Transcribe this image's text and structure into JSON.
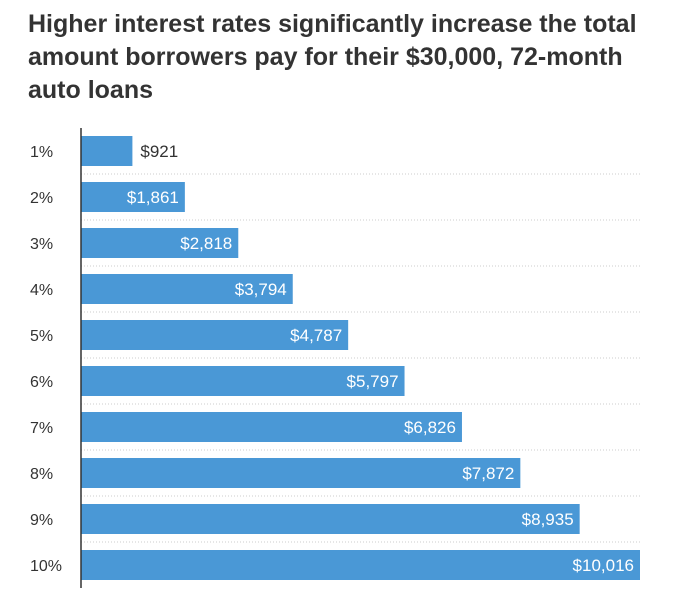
{
  "chart_data": {
    "type": "bar",
    "orientation": "horizontal",
    "title": "Higher interest rates significantly increase the total amount borrowers pay for their $30,000, 72-month auto loans",
    "categories": [
      "1%",
      "2%",
      "3%",
      "4%",
      "5%",
      "6%",
      "7%",
      "8%",
      "9%",
      "10%"
    ],
    "values": [
      921,
      1861,
      2818,
      3794,
      4787,
      5797,
      6826,
      7872,
      8935,
      10016
    ],
    "value_labels": [
      "$921",
      "$1,861",
      "$2,818",
      "$3,794",
      "$4,787",
      "$5,797",
      "$6,826",
      "$7,872",
      "$8,935",
      "$10,016"
    ],
    "xlim": [
      0,
      10016
    ],
    "grid": "horizontal dotted separators",
    "bar_color": "#4a98d6",
    "label_inside_color": "#ffffff",
    "label_outside_color": "#333333"
  }
}
